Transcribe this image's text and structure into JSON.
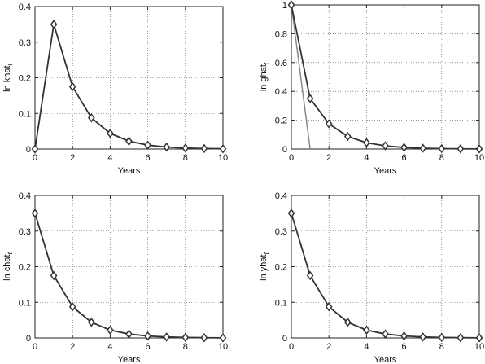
{
  "chart_data": [
    {
      "type": "line",
      "xlabel": "Years",
      "ylabel": "ln khat",
      "ylabel_subscript": "t",
      "xlim": [
        0,
        10
      ],
      "ylim": [
        0,
        0.4
      ],
      "xticks": [
        "0",
        "2",
        "4",
        "6",
        "8",
        "10"
      ],
      "yticks": [
        "0",
        "0.1",
        "0.2",
        "0.3",
        "0.4"
      ],
      "grid": true,
      "series": [
        {
          "color": "#333333",
          "marker": "diamond",
          "x": [
            0,
            1,
            2,
            3,
            4,
            5,
            6,
            7,
            8,
            9,
            10
          ],
          "y": [
            0,
            0.35,
            0.175,
            0.0875,
            0.044,
            0.022,
            0.011,
            0.0055,
            0.0027,
            0.0014,
            0.0007
          ]
        }
      ]
    },
    {
      "type": "line",
      "xlabel": "Years",
      "ylabel": "ln ghat",
      "ylabel_subscript": "t",
      "xlim": [
        0,
        10
      ],
      "ylim": [
        0,
        1
      ],
      "xticks": [
        "0",
        "2",
        "4",
        "6",
        "8",
        "10"
      ],
      "yticks": [
        "0",
        "0.2",
        "0.4",
        "0.6",
        "0.8",
        "1"
      ],
      "grid": true,
      "series": [
        {
          "color": "#888888",
          "marker": "none",
          "x": [
            0,
            1
          ],
          "y": [
            1,
            0
          ]
        },
        {
          "color": "#333333",
          "marker": "diamond",
          "x": [
            0,
            1,
            2,
            3,
            4,
            5,
            6,
            7,
            8,
            9,
            10
          ],
          "y": [
            1,
            0.35,
            0.175,
            0.0875,
            0.044,
            0.022,
            0.011,
            0.0055,
            0.0027,
            0.0014,
            0.0007
          ]
        }
      ]
    },
    {
      "type": "line",
      "xlabel": "Years",
      "ylabel": "ln chat",
      "ylabel_subscript": "t",
      "xlim": [
        0,
        10
      ],
      "ylim": [
        0,
        0.4
      ],
      "xticks": [
        "0",
        "2",
        "4",
        "6",
        "8",
        "10"
      ],
      "yticks": [
        "0",
        "0.1",
        "0.2",
        "0.3",
        "0.4"
      ],
      "grid": true,
      "series": [
        {
          "color": "#333333",
          "marker": "diamond",
          "x": [
            0,
            1,
            2,
            3,
            4,
            5,
            6,
            7,
            8,
            9,
            10
          ],
          "y": [
            0.35,
            0.175,
            0.0875,
            0.044,
            0.022,
            0.011,
            0.0055,
            0.0027,
            0.0014,
            0.0007,
            0.0003
          ]
        }
      ]
    },
    {
      "type": "line",
      "xlabel": "Years",
      "ylabel": "ln yhat",
      "ylabel_subscript": "t",
      "xlim": [
        0,
        10
      ],
      "ylim": [
        0,
        0.4
      ],
      "xticks": [
        "0",
        "2",
        "4",
        "6",
        "8",
        "10"
      ],
      "yticks": [
        "0",
        "0.1",
        "0.2",
        "0.3",
        "0.4"
      ],
      "grid": true,
      "series": [
        {
          "color": "#333333",
          "marker": "diamond",
          "x": [
            0,
            1,
            2,
            3,
            4,
            5,
            6,
            7,
            8,
            9,
            10
          ],
          "y": [
            0.35,
            0.175,
            0.0875,
            0.044,
            0.022,
            0.011,
            0.0055,
            0.0027,
            0.0014,
            0.0007,
            0.0003
          ]
        }
      ]
    }
  ]
}
